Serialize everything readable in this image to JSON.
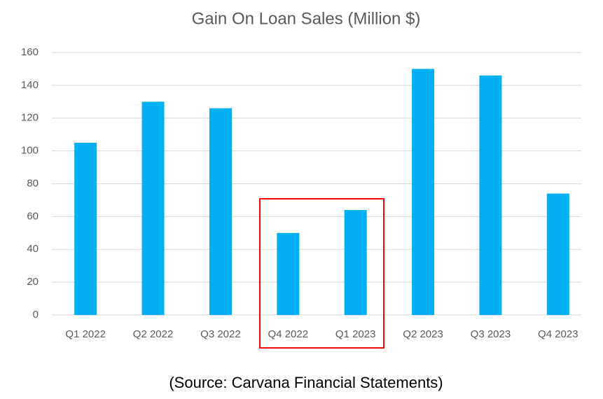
{
  "chart_data": {
    "type": "bar",
    "title": "Gain On Loan Sales (Million $)",
    "categories": [
      "Q1 2022",
      "Q2 2022",
      "Q3 2022",
      "Q4 2022",
      "Q1 2023",
      "Q2 2023",
      "Q3 2023",
      "Q4 2023"
    ],
    "values": [
      105,
      130,
      126,
      50,
      64,
      150,
      146,
      74
    ],
    "color": "#00b0f0",
    "ylim": [
      0,
      160
    ],
    "yticks": [
      0,
      20,
      40,
      60,
      80,
      100,
      120,
      140,
      160
    ],
    "grid": true,
    "source": "(Source: Carvana Financial Statements)"
  }
}
